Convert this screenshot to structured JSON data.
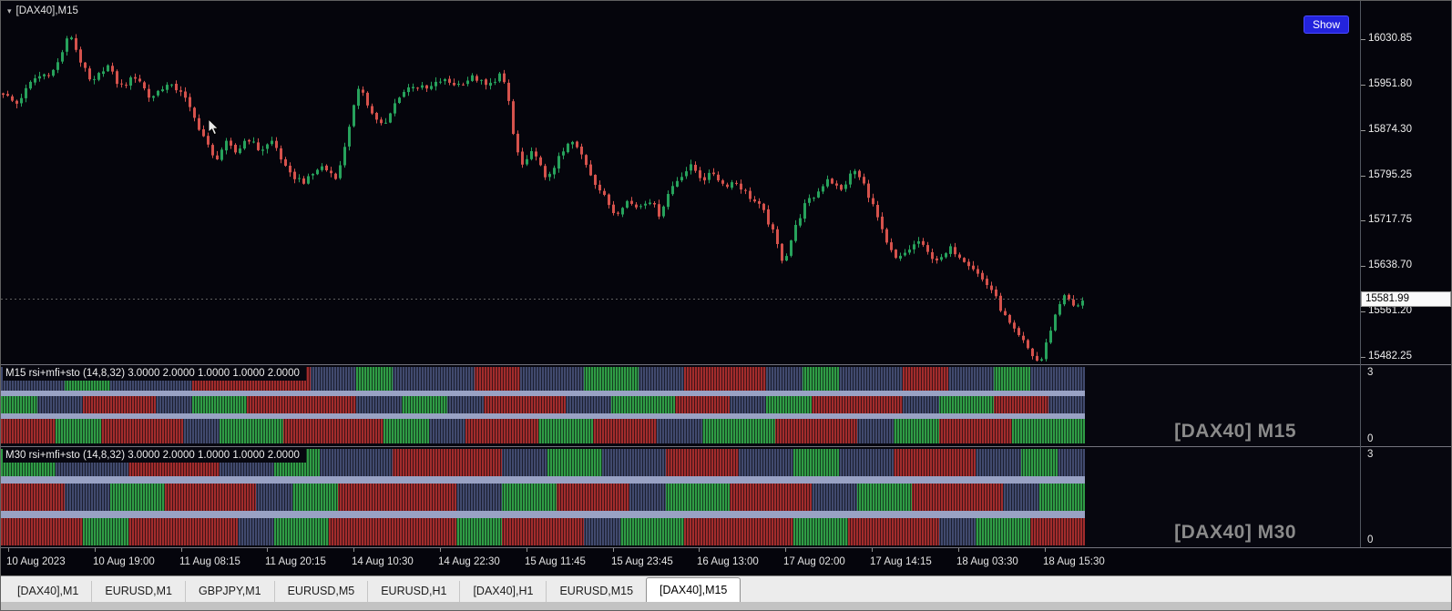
{
  "window": {
    "dropdown_icon": "▾",
    "symbol_label": "[DAX40],M15",
    "show_button": "Show"
  },
  "panels": [
    {
      "header": "M15 rsi+mfi+sto (14,8,32) 3.0000 2.0000 1.0000 1.0000 2.0000",
      "watermark": "[DAX40] M15",
      "scale_max": "3",
      "scale_min": "0"
    },
    {
      "header": "M30 rsi+mfi+sto (14,8,32) 3.0000 2.0000 1.0000 1.0000 2.0000",
      "watermark": "[DAX40] M30",
      "scale_max": "3",
      "scale_min": "0"
    }
  ],
  "tabs": {
    "items": [
      "[DAX40],M1",
      "EURUSD,M1",
      "GBPJPY,M1",
      "EURUSD,M5",
      "EURUSD,H1",
      "[DAX40],H1",
      "EURUSD,M15",
      "[DAX40],M15"
    ],
    "active_index": 7
  },
  "chart_data": [
    {
      "type": "candlestick",
      "symbol": "[DAX40]",
      "timeframe": "M15",
      "current_price": "15581.99",
      "y_axis": {
        "tick_labels": [
          "16030.85",
          "15951.80",
          "15874.30",
          "15795.25",
          "15717.75",
          "15638.70",
          "15561.20",
          "15482.25"
        ]
      },
      "x_tick_labels": [
        "10 Aug 2023",
        "10 Aug 19:00",
        "11 Aug 08:15",
        "11 Aug 20:15",
        "14 Aug 10:30",
        "14 Aug 22:30",
        "15 Aug 11:45",
        "15 Aug 23:45",
        "16 Aug 13:00",
        "17 Aug 02:00",
        "17 Aug 14:15",
        "18 Aug 03:30",
        "18 Aug 15:30"
      ],
      "colors": {
        "up": "#27a25c",
        "down": "#d5524c",
        "background": "#05050c"
      },
      "price_path_anchors": [
        [
          0.0,
          15938
        ],
        [
          0.012,
          15918
        ],
        [
          0.028,
          15962
        ],
        [
          0.048,
          15978
        ],
        [
          0.062,
          16042
        ],
        [
          0.07,
          16000
        ],
        [
          0.082,
          15952
        ],
        [
          0.096,
          15988
        ],
        [
          0.108,
          15948
        ],
        [
          0.124,
          15968
        ],
        [
          0.136,
          15928
        ],
        [
          0.15,
          15952
        ],
        [
          0.165,
          15942
        ],
        [
          0.176,
          15898
        ],
        [
          0.186,
          15862
        ],
        [
          0.196,
          15820
        ],
        [
          0.206,
          15852
        ],
        [
          0.216,
          15834
        ],
        [
          0.226,
          15862
        ],
        [
          0.238,
          15838
        ],
        [
          0.25,
          15856
        ],
        [
          0.264,
          15798
        ],
        [
          0.28,
          15784
        ],
        [
          0.294,
          15812
        ],
        [
          0.31,
          15792
        ],
        [
          0.323,
          15902
        ],
        [
          0.331,
          15952
        ],
        [
          0.341,
          15904
        ],
        [
          0.353,
          15878
        ],
        [
          0.366,
          15932
        ],
        [
          0.379,
          15952
        ],
        [
          0.393,
          15944
        ],
        [
          0.406,
          15960
        ],
        [
          0.421,
          15952
        ],
        [
          0.436,
          15966
        ],
        [
          0.449,
          15948
        ],
        [
          0.461,
          15972
        ],
        [
          0.468,
          15928
        ],
        [
          0.474,
          15848
        ],
        [
          0.482,
          15808
        ],
        [
          0.492,
          15842
        ],
        [
          0.502,
          15788
        ],
        [
          0.514,
          15822
        ],
        [
          0.526,
          15856
        ],
        [
          0.537,
          15828
        ],
        [
          0.547,
          15788
        ],
        [
          0.557,
          15758
        ],
        [
          0.567,
          15728
        ],
        [
          0.577,
          15752
        ],
        [
          0.588,
          15740
        ],
        [
          0.598,
          15756
        ],
        [
          0.608,
          15728
        ],
        [
          0.618,
          15772
        ],
        [
          0.628,
          15796
        ],
        [
          0.638,
          15812
        ],
        [
          0.648,
          15788
        ],
        [
          0.658,
          15800
        ],
        [
          0.668,
          15778
        ],
        [
          0.678,
          15786
        ],
        [
          0.692,
          15758
        ],
        [
          0.703,
          15738
        ],
        [
          0.713,
          15698
        ],
        [
          0.723,
          15644
        ],
        [
          0.733,
          15702
        ],
        [
          0.743,
          15746
        ],
        [
          0.753,
          15762
        ],
        [
          0.764,
          15792
        ],
        [
          0.776,
          15768
        ],
        [
          0.788,
          15806
        ],
        [
          0.798,
          15778
        ],
        [
          0.808,
          15734
        ],
        [
          0.818,
          15678
        ],
        [
          0.828,
          15648
        ],
        [
          0.838,
          15666
        ],
        [
          0.848,
          15682
        ],
        [
          0.858,
          15658
        ],
        [
          0.868,
          15648
        ],
        [
          0.878,
          15670
        ],
        [
          0.888,
          15654
        ],
        [
          0.898,
          15638
        ],
        [
          0.906,
          15618
        ],
        [
          0.916,
          15598
        ],
        [
          0.926,
          15558
        ],
        [
          0.936,
          15528
        ],
        [
          0.946,
          15506
        ],
        [
          0.956,
          15478
        ],
        [
          0.961,
          15472
        ],
        [
          0.969,
          15522
        ],
        [
          0.976,
          15562
        ],
        [
          0.983,
          15592
        ],
        [
          0.989,
          15574
        ],
        [
          0.995,
          15566
        ],
        [
          1.0,
          15582
        ]
      ]
    },
    {
      "type": "bar",
      "name": "M15 rsi+mfi+sto (14,8,32)",
      "levels": [
        "3.0000",
        "2.0000",
        "1.0000",
        "1.0000",
        "2.0000"
      ],
      "scale": [
        0,
        3
      ],
      "colors": {
        "R": "#a22c2c",
        "G": "#2f9c45",
        "N": "#414a6e",
        "separator": "#99a2c4"
      },
      "rows": [
        [
          [
            "N",
            7
          ],
          [
            "G",
            5
          ],
          [
            "N",
            9
          ],
          [
            "R",
            13
          ],
          [
            "N",
            5
          ],
          [
            "G",
            4
          ],
          [
            "N",
            9
          ],
          [
            "R",
            5
          ],
          [
            "N",
            7
          ],
          [
            "G",
            6
          ],
          [
            "N",
            5
          ],
          [
            "R",
            9
          ],
          [
            "N",
            4
          ],
          [
            "G",
            4
          ],
          [
            "N",
            7
          ],
          [
            "R",
            5
          ],
          [
            "N",
            5
          ],
          [
            "G",
            4
          ],
          [
            "N",
            6
          ]
        ],
        [
          [
            "G",
            4
          ],
          [
            "N",
            5
          ],
          [
            "R",
            8
          ],
          [
            "N",
            4
          ],
          [
            "G",
            6
          ],
          [
            "R",
            12
          ],
          [
            "N",
            5
          ],
          [
            "G",
            5
          ],
          [
            "N",
            4
          ],
          [
            "R",
            9
          ],
          [
            "N",
            5
          ],
          [
            "G",
            7
          ],
          [
            "R",
            6
          ],
          [
            "N",
            4
          ],
          [
            "G",
            5
          ],
          [
            "R",
            10
          ],
          [
            "N",
            4
          ],
          [
            "G",
            6
          ],
          [
            "R",
            6
          ],
          [
            "N",
            4
          ]
        ],
        [
          [
            "R",
            6
          ],
          [
            "G",
            5
          ],
          [
            "R",
            9
          ],
          [
            "N",
            4
          ],
          [
            "G",
            7
          ],
          [
            "R",
            11
          ],
          [
            "G",
            5
          ],
          [
            "N",
            4
          ],
          [
            "R",
            8
          ],
          [
            "G",
            6
          ],
          [
            "R",
            7
          ],
          [
            "N",
            5
          ],
          [
            "G",
            8
          ],
          [
            "R",
            9
          ],
          [
            "N",
            4
          ],
          [
            "G",
            5
          ],
          [
            "R",
            8
          ],
          [
            "G",
            8
          ]
        ]
      ]
    },
    {
      "type": "bar",
      "name": "M30 rsi+mfi+sto (14,8,32)",
      "levels": [
        "3.0000",
        "2.0000",
        "1.0000",
        "1.0000",
        "2.0000"
      ],
      "scale": [
        0,
        3
      ],
      "colors": {
        "R": "#a22c2c",
        "G": "#2f9c45",
        "N": "#414a6e",
        "separator": "#99a2c4"
      },
      "rows": [
        [
          [
            "G",
            6
          ],
          [
            "N",
            8
          ],
          [
            "R",
            10
          ],
          [
            "N",
            6
          ],
          [
            "G",
            5
          ],
          [
            "N",
            8
          ],
          [
            "R",
            12
          ],
          [
            "N",
            5
          ],
          [
            "G",
            6
          ],
          [
            "N",
            7
          ],
          [
            "R",
            8
          ],
          [
            "N",
            6
          ],
          [
            "G",
            5
          ],
          [
            "N",
            6
          ],
          [
            "R",
            9
          ],
          [
            "N",
            5
          ],
          [
            "G",
            4
          ],
          [
            "N",
            3
          ]
        ],
        [
          [
            "R",
            7
          ],
          [
            "N",
            5
          ],
          [
            "G",
            6
          ],
          [
            "R",
            10
          ],
          [
            "N",
            4
          ],
          [
            "G",
            5
          ],
          [
            "R",
            13
          ],
          [
            "N",
            5
          ],
          [
            "G",
            6
          ],
          [
            "R",
            8
          ],
          [
            "N",
            4
          ],
          [
            "G",
            7
          ],
          [
            "R",
            9
          ],
          [
            "N",
            5
          ],
          [
            "G",
            6
          ],
          [
            "R",
            10
          ],
          [
            "N",
            4
          ],
          [
            "G",
            5
          ]
        ],
        [
          [
            "R",
            9
          ],
          [
            "G",
            5
          ],
          [
            "R",
            12
          ],
          [
            "N",
            4
          ],
          [
            "G",
            6
          ],
          [
            "R",
            14
          ],
          [
            "G",
            5
          ],
          [
            "R",
            9
          ],
          [
            "N",
            4
          ],
          [
            "G",
            7
          ],
          [
            "R",
            12
          ],
          [
            "G",
            6
          ],
          [
            "R",
            10
          ],
          [
            "N",
            4
          ],
          [
            "G",
            6
          ],
          [
            "R",
            6
          ]
        ]
      ]
    }
  ]
}
